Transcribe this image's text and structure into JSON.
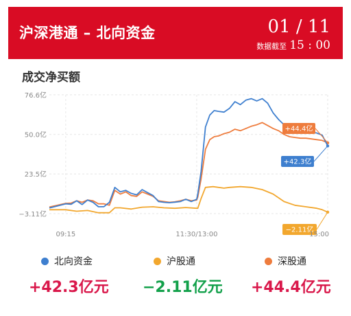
{
  "banner": {
    "title": "沪深港通 – 北向资金",
    "date": "01 / 11",
    "time_label": "数据截至",
    "time": "15 : 00",
    "bg_color": "#d90c24"
  },
  "section_title": "成交净买额",
  "legend": {
    "items": [
      {
        "label": "北向资金",
        "color": "#3e7fcf"
      },
      {
        "label": "沪股通",
        "color": "#f2a72e"
      },
      {
        "label": "深股通",
        "color": "#ee7c3d"
      }
    ]
  },
  "totals": {
    "items": [
      {
        "text": "+42.3亿元",
        "color": "#d9174a"
      },
      {
        "text": "−2.11亿元",
        "color": "#12a04a"
      },
      {
        "text": "+44.4亿元",
        "color": "#d9174a"
      }
    ]
  },
  "chart_data": {
    "type": "line",
    "title": "成交净买额",
    "xlabel": "",
    "ylabel": "",
    "x_ticks": [
      "09:15",
      "11:30/13:00",
      "15:00"
    ],
    "y_ticks": [
      "76.6亿",
      "50.0亿",
      "23.5亿",
      "−3.11亿"
    ],
    "ylim": [
      -3.11,
      76.6
    ],
    "grid": true,
    "x_unit": "trading minutes since 09:30 (0–240)",
    "series": [
      {
        "name": "北向资金",
        "color": "#3e7fcf",
        "end_label": "+42.3亿",
        "x": [
          -15,
          0,
          5,
          10,
          15,
          20,
          25,
          30,
          35,
          40,
          45,
          50,
          55,
          60,
          65,
          70,
          75,
          80,
          85,
          90,
          95,
          100,
          105,
          110,
          115,
          120,
          121,
          124,
          128,
          132,
          136,
          140,
          145,
          150,
          155,
          160,
          165,
          170,
          175,
          180,
          185,
          190,
          195,
          200,
          205,
          210,
          215,
          220,
          225,
          230,
          235,
          240
        ],
        "y": [
          0.7,
          3.5,
          3.2,
          5.5,
          3.0,
          6.0,
          4.5,
          1.5,
          1.6,
          4.5,
          14.5,
          11.5,
          12.5,
          10.5,
          9.5,
          13.0,
          11.0,
          9.0,
          5.0,
          4.5,
          4.2,
          4.6,
          5.0,
          6.5,
          5.0,
          6.5,
          10.0,
          25.0,
          55.0,
          63.0,
          66.0,
          65.5,
          65.0,
          67.5,
          72.0,
          70.0,
          73.0,
          74.0,
          72.5,
          74.0,
          71.0,
          64.5,
          60.0,
          56.5,
          53.0,
          53.5,
          53.0,
          52.5,
          51.5,
          51.0,
          49.5,
          42.3
        ]
      },
      {
        "name": "沪股通",
        "color": "#f2a72e",
        "end_label": "−2.11亿",
        "x": [
          -15,
          0,
          10,
          20,
          30,
          40,
          45,
          50,
          60,
          70,
          80,
          90,
          100,
          110,
          120,
          121,
          124,
          128,
          135,
          145,
          150,
          160,
          170,
          180,
          190,
          200,
          210,
          220,
          230,
          235,
          240
        ],
        "y": [
          -0.5,
          -0.5,
          -1.5,
          -1.0,
          -2.5,
          -2.5,
          0.8,
          0.8,
          0.0,
          1.2,
          1.5,
          0.8,
          0.5,
          1.0,
          0.5,
          0.5,
          7.0,
          14.5,
          15.0,
          14.0,
          14.5,
          15.0,
          14.5,
          13.0,
          10.0,
          5.0,
          2.5,
          1.5,
          0.5,
          -0.5,
          -2.11
        ]
      },
      {
        "name": "深股通",
        "color": "#ee7c3d",
        "end_label": "+44.4亿",
        "x": [
          -15,
          0,
          5,
          10,
          15,
          20,
          25,
          30,
          35,
          40,
          45,
          50,
          55,
          60,
          65,
          70,
          75,
          80,
          85,
          90,
          95,
          100,
          105,
          110,
          115,
          120,
          121,
          124,
          128,
          132,
          136,
          140,
          145,
          150,
          155,
          160,
          165,
          170,
          175,
          180,
          185,
          190,
          195,
          200,
          205,
          210,
          215,
          220,
          225,
          230,
          235,
          240
        ],
        "y": [
          1.3,
          3.8,
          4.0,
          5.5,
          4.5,
          6.0,
          5.5,
          3.5,
          3.5,
          2.5,
          12.5,
          10.0,
          11.5,
          9.0,
          8.5,
          11.5,
          10.0,
          8.5,
          5.5,
          5.0,
          4.5,
          4.8,
          5.5,
          6.5,
          5.5,
          6.0,
          8.0,
          20.0,
          40.0,
          46.5,
          48.5,
          49.0,
          50.5,
          51.5,
          53.5,
          52.5,
          54.0,
          55.5,
          56.5,
          58.0,
          56.0,
          54.0,
          52.5,
          50.0,
          48.5,
          48.0,
          47.5,
          47.5,
          47.0,
          46.5,
          46.0,
          44.4
        ]
      }
    ]
  }
}
